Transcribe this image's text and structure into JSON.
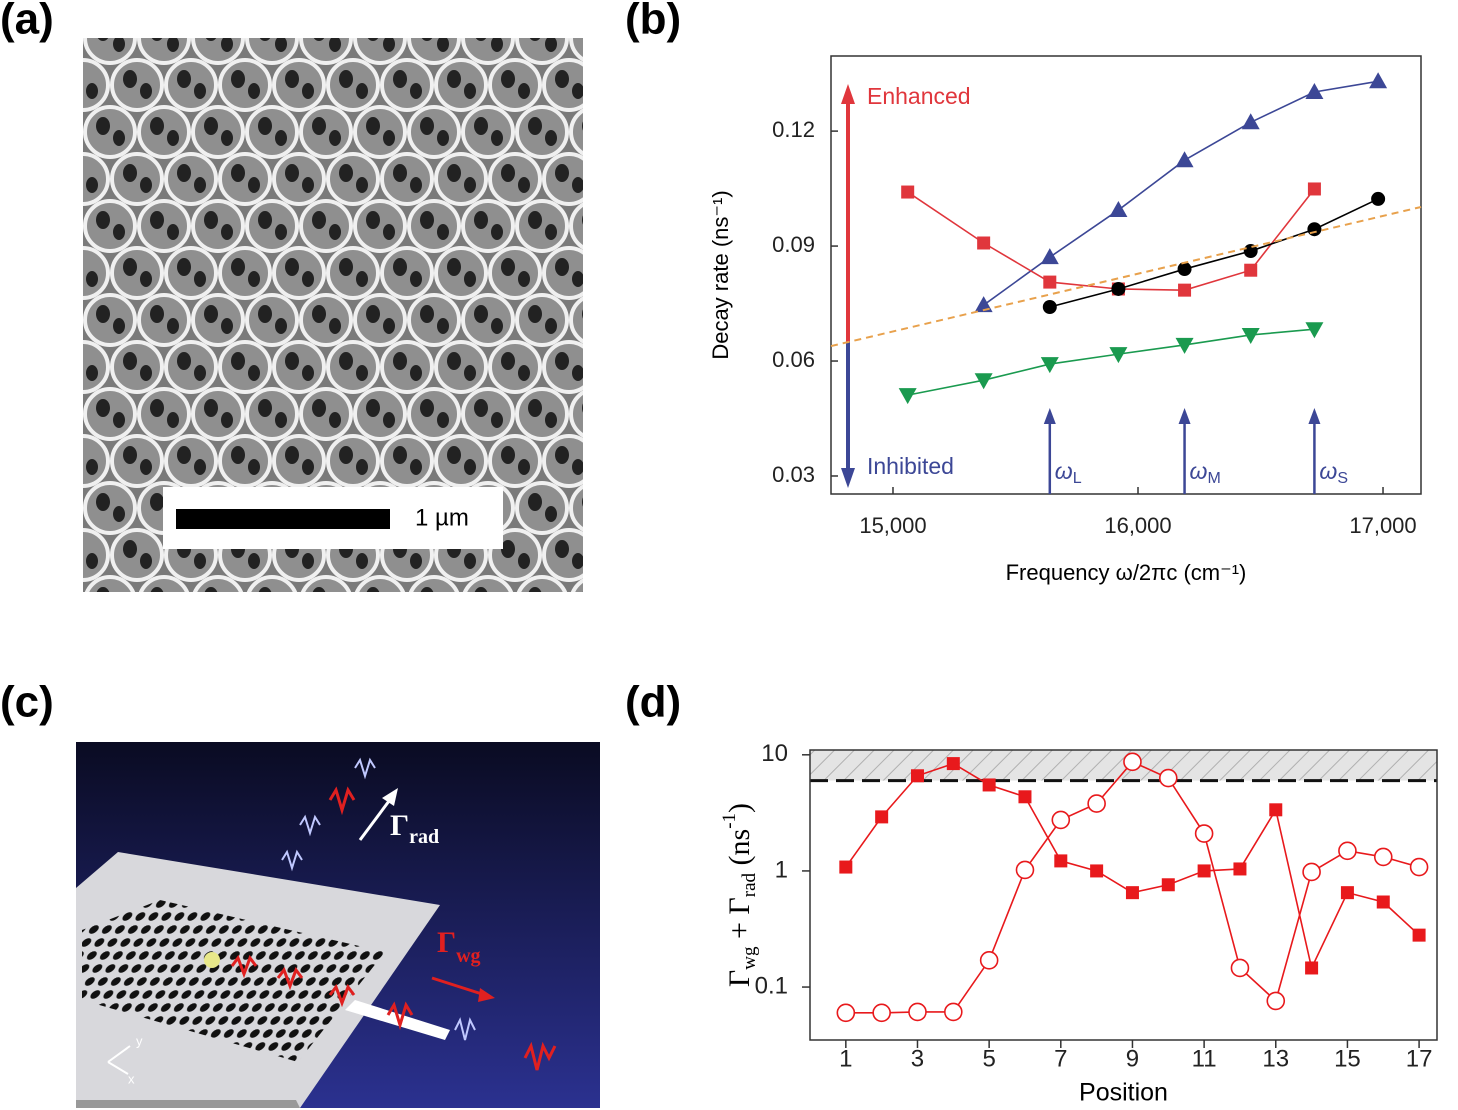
{
  "panel_labels": [
    "(a)",
    "(b)",
    "(c)",
    "(d)"
  ],
  "image_a": {
    "scale_bar_label": "1 µm"
  },
  "image_c": {
    "rad_label": {
      "symbol": "Γ",
      "sub": "rad"
    },
    "wg_label": {
      "symbol": "Γ",
      "sub": "wg"
    },
    "axis_x": "x",
    "axis_y": "y"
  },
  "chart_data": [
    {
      "type": "line",
      "xlabel": "Frequency ω/2πc (cm⁻¹)",
      "ylabel": "Decay rate (ns⁻¹)",
      "xlim": [
        14747,
        17155
      ],
      "ylim": [
        0.0253,
        0.1396
      ],
      "xticks": [
        {
          "value": 15000,
          "label": "15,000"
        },
        {
          "value": 16000,
          "label": "16,000"
        },
        {
          "value": 17000,
          "label": "17,000"
        }
      ],
      "yticks": [
        0.03,
        0.06,
        0.09,
        0.12
      ],
      "series": [
        {
          "color": "#3c4796",
          "marker": "triangle-up",
          "x": [
            15370,
            15640,
            15920,
            16190,
            16460,
            16720,
            16980
          ],
          "values": [
            0.0746,
            0.0871,
            0.0994,
            0.1124,
            0.1223,
            0.1302,
            0.133
          ]
        },
        {
          "color": "#e0363c",
          "marker": "square",
          "x": [
            15060,
            15370,
            15640,
            15920,
            16190,
            16460,
            16720
          ],
          "values": [
            0.1041,
            0.0908,
            0.0806,
            0.0788,
            0.0785,
            0.0837,
            0.1049
          ]
        },
        {
          "color": "#000000",
          "marker": "circle",
          "x": [
            15640,
            15920,
            16190,
            16460,
            16720,
            16980
          ],
          "values": [
            0.0741,
            0.0788,
            0.084,
            0.0887,
            0.0944,
            0.1023
          ]
        },
        {
          "color": "#1a9a4f",
          "marker": "triangle-down",
          "x": [
            15060,
            15370,
            15640,
            15920,
            16190,
            16460,
            16720
          ],
          "values": [
            0.0511,
            0.055,
            0.0592,
            0.0618,
            0.0642,
            0.0668,
            0.0683
          ]
        },
        {
          "color": "#e8a14c",
          "marker": "none",
          "dashed": true,
          "x": [
            14747,
            17155
          ],
          "values": [
            0.0639,
            0.1002
          ]
        }
      ],
      "annotations": [
        {
          "text": "Enhanced",
          "color": "#e0363c"
        },
        {
          "text": "Inhibited",
          "color": "#3c4796"
        }
      ],
      "markers": [
        {
          "symbol": "ω",
          "sub": "L",
          "x": 15640
        },
        {
          "symbol": "ω",
          "sub": "M",
          "x": 16190
        },
        {
          "symbol": "ω",
          "sub": "S",
          "x": 16720
        }
      ]
    },
    {
      "type": "line",
      "yscale": "log",
      "xlabel": "Position",
      "ylabel": [
        {
          "text": "Γ",
          "style": "normal"
        },
        {
          "text": "wg",
          "style": "sub"
        },
        {
          "text": " + Γ",
          "style": "normal"
        },
        {
          "text": "rad",
          "style": "sub"
        },
        {
          "text": " (ns",
          "style": "normal"
        },
        {
          "text": "-1",
          "style": "sup"
        },
        {
          "text": ")",
          "style": "normal"
        }
      ],
      "xlim": [
        0,
        17.5
      ],
      "ylim": [
        0.035,
        11
      ],
      "xticks": [
        1,
        3,
        5,
        7,
        9,
        11,
        13,
        15,
        17
      ],
      "yticks": [
        0.1,
        1,
        10
      ],
      "threshold": 6,
      "x": [
        1,
        2,
        3,
        4,
        5,
        6,
        7,
        8,
        9,
        10,
        11,
        12,
        13,
        14,
        15,
        16,
        17
      ],
      "series": [
        {
          "color": "#e8191c",
          "marker": "square",
          "values": [
            1.08,
            2.92,
            6.6,
            8.4,
            5.5,
            4.35,
            1.22,
            1.0,
            0.65,
            0.76,
            1.0,
            1.04,
            3.36,
            0.146,
            0.65,
            0.54,
            0.28
          ]
        },
        {
          "color": "#e8191c",
          "marker": "open-circle",
          "values": [
            0.06,
            0.06,
            0.061,
            0.061,
            0.17,
            1.02,
            2.75,
            3.8,
            8.7,
            6.3,
            2.1,
            0.146,
            0.076,
            0.98,
            1.49,
            1.32,
            1.08
          ]
        }
      ]
    }
  ]
}
